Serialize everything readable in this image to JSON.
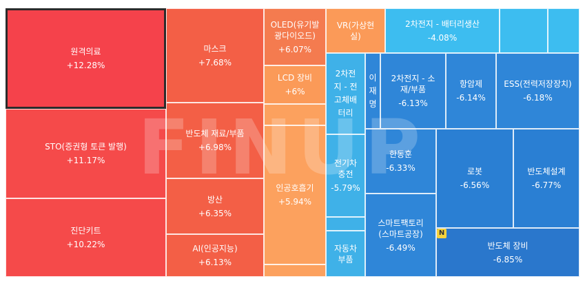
{
  "watermark": "FINUP",
  "badge": "N",
  "tiles": {
    "t1": {
      "name": "원격의료",
      "pct": "+12.28%"
    },
    "t2": {
      "name": "STO(증권형 토큰 발행)",
      "pct": "+11.17%"
    },
    "t3": {
      "name": "진단키트",
      "pct": "+10.22%"
    },
    "t4": {
      "name": "마스크",
      "pct": "+7.68%"
    },
    "t5": {
      "name": "반도체 재료/부품",
      "pct": "+6.98%"
    },
    "t6": {
      "name": "방산",
      "pct": "+6.35%"
    },
    "t7": {
      "name": "AI(인공지능)",
      "pct": "+6.13%"
    },
    "t8": {
      "name": "OLED(유기발\n광다이오드)",
      "pct": "+6.07%"
    },
    "t9": {
      "name": "LCD 장비",
      "pct": "+6%"
    },
    "t10": {
      "name": "인공호흡기",
      "pct": "+5.94%"
    },
    "t11": {
      "name": "VR(가상현\n실)",
      "pct": ""
    },
    "t12": {
      "name": "2차전지 - 배터리생산",
      "pct": "-4.08%"
    },
    "t13": {
      "name": "2차전\n지 - 전\n고체배\n터리",
      "pct": ""
    },
    "t14": {
      "name": "이\n재\n명",
      "pct": ""
    },
    "t15": {
      "name": "2차전지 - 소\n재/부품",
      "pct": "-6.13%"
    },
    "t16": {
      "name": "항암제",
      "pct": "-6.14%"
    },
    "t17": {
      "name": "ESS(전력저장장치)",
      "pct": "-6.18%"
    },
    "t18": {
      "name": "전기차\n충전",
      "pct": "-5.79%"
    },
    "t19": {
      "name": "한동훈",
      "pct": "-6.33%"
    },
    "t20": {
      "name": "로봇",
      "pct": "-6.56%"
    },
    "t21": {
      "name": "반도체설계",
      "pct": "-6.77%"
    },
    "t22": {
      "name": "스마트팩토리\n(스마트공장)",
      "pct": "-6.49%"
    },
    "t23": {
      "name": "반도체 장비",
      "pct": "-6.85%"
    },
    "t24": {
      "name": "자동차\n부품",
      "pct": ""
    }
  }
}
